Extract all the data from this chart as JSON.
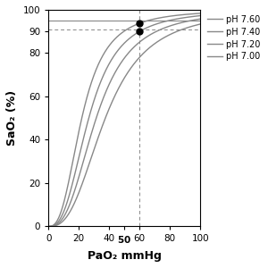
{
  "title": "",
  "xlabel": "PaO₂ mmHg",
  "ylabel": "SaO₂ (%)",
  "xlim": [
    0,
    100
  ],
  "ylim": [
    0,
    100
  ],
  "xticks": [
    0,
    20,
    40,
    50,
    60,
    80,
    100
  ],
  "yticks": [
    0,
    20,
    40,
    60,
    80,
    90,
    100
  ],
  "ph_values": [
    7.6,
    7.4,
    7.2,
    7.0
  ],
  "p50_values": [
    22.0,
    26.6,
    31.5,
    37.5
  ],
  "n_hill": 2.7,
  "line_color": "#888888",
  "dot_color": "#000000",
  "hline_95": 95.0,
  "hline_91": 91.0,
  "vline_x": 60.0,
  "dot_pao2": 60.0,
  "legend_labels": [
    "pH 7.60",
    "pH 7.40",
    "pH 7.20",
    "pH 7.00"
  ],
  "xlabel_fontsize": 9,
  "ylabel_fontsize": 9,
  "tick_fontsize": 7.5,
  "legend_fontsize": 7
}
